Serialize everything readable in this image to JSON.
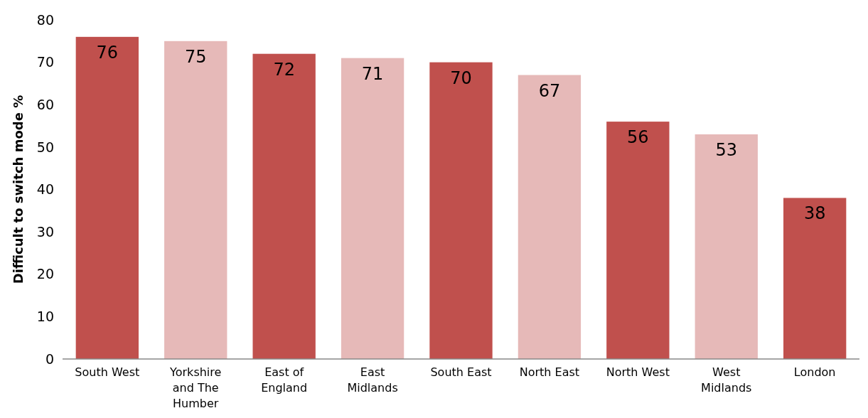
{
  "chart_data": {
    "type": "bar",
    "ylabel": "Difficult to switch mode %",
    "categories": [
      "South West",
      "Yorkshire and The Humber",
      "East of England",
      "East Midlands",
      "South East",
      "North East",
      "North West",
      "West Midlands",
      "London"
    ],
    "values": [
      76,
      75,
      72,
      71,
      70,
      67,
      56,
      53,
      38
    ],
    "colors": [
      "#c0504d",
      "#e6b9b8",
      "#c0504d",
      "#e6b9b8",
      "#c0504d",
      "#e6b9b8",
      "#c0504d",
      "#e6b9b8",
      "#c0504d"
    ],
    "ylim": [
      0,
      80
    ],
    "yticks": [
      0,
      10,
      20,
      30,
      40,
      50,
      60,
      70,
      80
    ],
    "grid": false,
    "data_labels": true
  }
}
